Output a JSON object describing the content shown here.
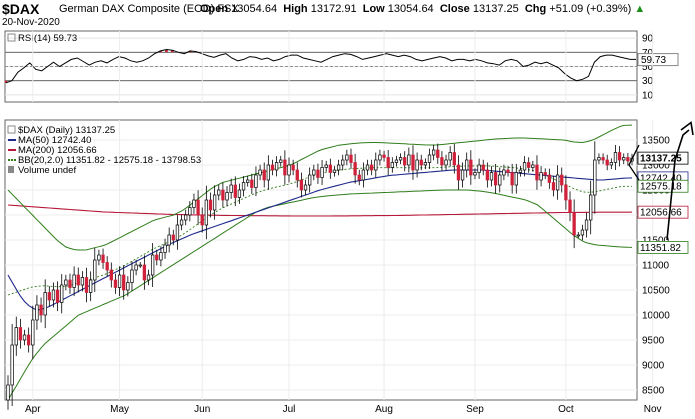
{
  "header": {
    "symbol": "$DAX",
    "name": "German DAX Composite (EOD)",
    "exchange": "FSX",
    "date": "20-Nov-2020",
    "open_label": "Open",
    "open": "13054.64",
    "high_label": "High",
    "high": "13172.91",
    "low_label": "Low",
    "low": "13054.64",
    "close_label": "Close",
    "close": "13137.25",
    "chg_label": "Chg",
    "chg": "+51.09 (+0.39%)",
    "chg_arrow": "▲"
  },
  "chart_data": [
    {
      "type": "line",
      "panel": "indicator",
      "legend": "RSI(14) 59.73",
      "ylim": [
        0,
        100
      ],
      "yticks": [
        10,
        30,
        50,
        70,
        90
      ],
      "reference_lines": [
        30,
        50,
        70
      ],
      "last_value_label": "59.73",
      "series": [
        {
          "name": "RSI(14)",
          "color": "#000000",
          "values": [
            27,
            30,
            42,
            48,
            55,
            46,
            44,
            50,
            56,
            50,
            55,
            60,
            62,
            57,
            52,
            56,
            58,
            55,
            60,
            64,
            62,
            58,
            56,
            58,
            62,
            68,
            72,
            74,
            73,
            70,
            68,
            72,
            71,
            68,
            65,
            63,
            66,
            68,
            62,
            58,
            60,
            64,
            63,
            60,
            62,
            58,
            60,
            64,
            66,
            66,
            62,
            60,
            58,
            56,
            60,
            64,
            66,
            68,
            67,
            64,
            60,
            62,
            64,
            66,
            68,
            66,
            64,
            66,
            64,
            60,
            58,
            60,
            62,
            64,
            62,
            58,
            60,
            60,
            58,
            60,
            58,
            55,
            54,
            52,
            58,
            60,
            58,
            50,
            52,
            56,
            54,
            56,
            52,
            48,
            40,
            34,
            30,
            32,
            36,
            56,
            64,
            66,
            66,
            64,
            62,
            60,
            60
          ]
        }
      ]
    },
    {
      "type": "candlestick",
      "panel": "price",
      "legend": [
        {
          "label": "$DAX (Daily) 13137.25",
          "color": "#000000"
        },
        {
          "label": "MA(50) 12742.40",
          "color": "#1f2a8c"
        },
        {
          "label": "MA(200) 12056.66",
          "color": "#b8193a"
        },
        {
          "label": "BB(20,2.0) 11351.82 - 12575.18 - 13798.53",
          "color": "#2e7d1a"
        },
        {
          "label": "Volume undef",
          "color": "#888888"
        }
      ],
      "ylim": [
        8300,
        13900
      ],
      "yticks": [
        8500,
        9000,
        9500,
        10000,
        10500,
        11000,
        11500,
        12000,
        12500,
        13000,
        13500
      ],
      "x_labels": [
        "Apr",
        "May",
        "Jun",
        "Jul",
        "Aug",
        "Sep",
        "Oct",
        "Nov"
      ],
      "x_label_index": [
        6,
        27,
        47,
        68,
        91,
        113,
        135,
        156
      ],
      "value_tags": [
        {
          "text": "13137.25",
          "value": 13137.25,
          "bold": true,
          "color": "#000000"
        },
        {
          "text": "12742.40",
          "value": 12742.4,
          "bold": false,
          "color": "#1f2a8c"
        },
        {
          "text": "12575.18",
          "value": 12575.18,
          "bold": false,
          "color": "#2e7d1a"
        },
        {
          "text": "12056.66",
          "value": 12056.66,
          "bold": false,
          "color": "#b8193a"
        },
        {
          "text": "11351.82",
          "value": 11351.82,
          "bold": false,
          "color": "#2e7d1a"
        }
      ],
      "close": [
        8600,
        9400,
        9750,
        9500,
        9600,
        9400,
        9900,
        10200,
        10000,
        10450,
        10300,
        10500,
        10250,
        10600,
        10700,
        10550,
        10800,
        10600,
        10750,
        10450,
        10700,
        11100,
        11200,
        11050,
        10900,
        10700,
        10550,
        10800,
        10500,
        10650,
        10900,
        11000,
        11000,
        10700,
        10800,
        11200,
        11100,
        11250,
        11400,
        11600,
        11500,
        11800,
        11900,
        12000,
        12150,
        12300,
        12000,
        11800,
        12300,
        12100,
        12400,
        12500,
        12300,
        12450,
        12600,
        12350,
        12500,
        12650,
        12700,
        12550,
        12800,
        12900,
        12700,
        13000,
        12900,
        13050,
        13100,
        12800,
        13000,
        12900,
        12700,
        12500,
        12600,
        12800,
        12900,
        12750,
        12950,
        13000,
        12850,
        12900,
        13000,
        13100,
        13200,
        13050,
        12800,
        12700,
        12900,
        13000,
        12900,
        13100,
        13200,
        13150,
        12950,
        13050,
        13100,
        13150,
        13000,
        13200,
        12900,
        13100,
        13000,
        13050,
        13200,
        13300,
        13150,
        13000,
        13100,
        13250,
        13000,
        12700,
        12900,
        13100,
        12800,
        12850,
        13000,
        12900,
        12700,
        12850,
        12600,
        12800,
        12900,
        12850,
        12600,
        12850,
        12900,
        13050,
        12950,
        13000,
        12700,
        12850,
        12800,
        12650,
        12500,
        12800,
        12600,
        12300,
        12050,
        11600,
        11600,
        11700,
        11900,
        12400,
        13100,
        13150,
        13100,
        13000,
        13050,
        13250,
        13100,
        13150,
        13080,
        13137
      ],
      "ma50": [
        10800,
        10600,
        10400,
        10250,
        10150,
        10100,
        10120,
        10160,
        10220,
        10280,
        10340,
        10400,
        10460,
        10520,
        10580,
        10640,
        10700,
        10760,
        10820,
        10880,
        10940,
        11000,
        11060,
        11120,
        11180,
        11240,
        11300,
        11360,
        11420,
        11470,
        11520,
        11570,
        11620,
        11660,
        11700,
        11740,
        11780,
        11820,
        11860,
        11900,
        11940,
        11980,
        12020,
        12060,
        12100,
        12140,
        12180,
        12220,
        12260,
        12300,
        12340,
        12380,
        12420,
        12460,
        12500,
        12530,
        12560,
        12590,
        12620,
        12650,
        12670,
        12690,
        12710,
        12730,
        12750,
        12770,
        12790,
        12800,
        12810,
        12820,
        12830,
        12840,
        12850,
        12860,
        12870,
        12880,
        12890,
        12900,
        12900,
        12900,
        12900,
        12900,
        12900,
        12890,
        12880,
        12870,
        12860,
        12850,
        12840,
        12830,
        12820,
        12810,
        12800,
        12790,
        12780,
        12770,
        12760,
        12750,
        12740,
        12730,
        12720,
        12710,
        12700,
        12700,
        12710,
        12720,
        12730,
        12740,
        12742
      ],
      "ma200": [
        12200,
        12180,
        12160,
        12140,
        12120,
        12100,
        12080,
        12060,
        12050,
        12040,
        12030,
        12020,
        12010,
        12005,
        12000,
        11995,
        11990,
        11988,
        11986,
        11984,
        11982,
        11980,
        11980,
        11980,
        11982,
        11984,
        11986,
        11988,
        11990,
        11995,
        12000,
        12005,
        12010,
        12015,
        12020,
        12025,
        12030,
        12035,
        12040,
        12045,
        12050,
        12052,
        12054,
        12056,
        12056,
        12057
      ],
      "bb_upper": [
        12500,
        12300,
        12100,
        11900,
        11700,
        11500,
        11350,
        11300,
        11300,
        11350,
        11400,
        11500,
        11600,
        11700,
        11800,
        11900,
        11950,
        12000,
        12100,
        12250,
        12400,
        12550,
        12650,
        12700,
        12750,
        12800,
        12850,
        12900,
        12950,
        13000,
        13100,
        13200,
        13300,
        13350,
        13400,
        13420,
        13440,
        13450,
        13450,
        13440,
        13430,
        13420,
        13410,
        13400,
        13400,
        13420,
        13440,
        13460,
        13480,
        13500,
        13520,
        13530,
        13540,
        13540,
        13530,
        13520,
        13510,
        13500,
        13460,
        13450,
        13500,
        13600,
        13700,
        13790,
        13798
      ],
      "bb_lower": [
        8300,
        8700,
        9100,
        9400,
        9600,
        9800,
        10000,
        10100,
        10200,
        10300,
        10400,
        10550,
        10700,
        10850,
        11000,
        11150,
        11300,
        11450,
        11600,
        11750,
        11900,
        12050,
        12150,
        12200,
        12250,
        12300,
        12350,
        12380,
        12400,
        12420,
        12430,
        12440,
        12450,
        12460,
        12470,
        12480,
        12490,
        12500,
        12500,
        12500,
        12480,
        12450,
        12400,
        12350,
        12300,
        12200,
        12000,
        11800,
        11600,
        11450,
        11400,
        11380,
        11360,
        11352
      ]
    }
  ]
}
